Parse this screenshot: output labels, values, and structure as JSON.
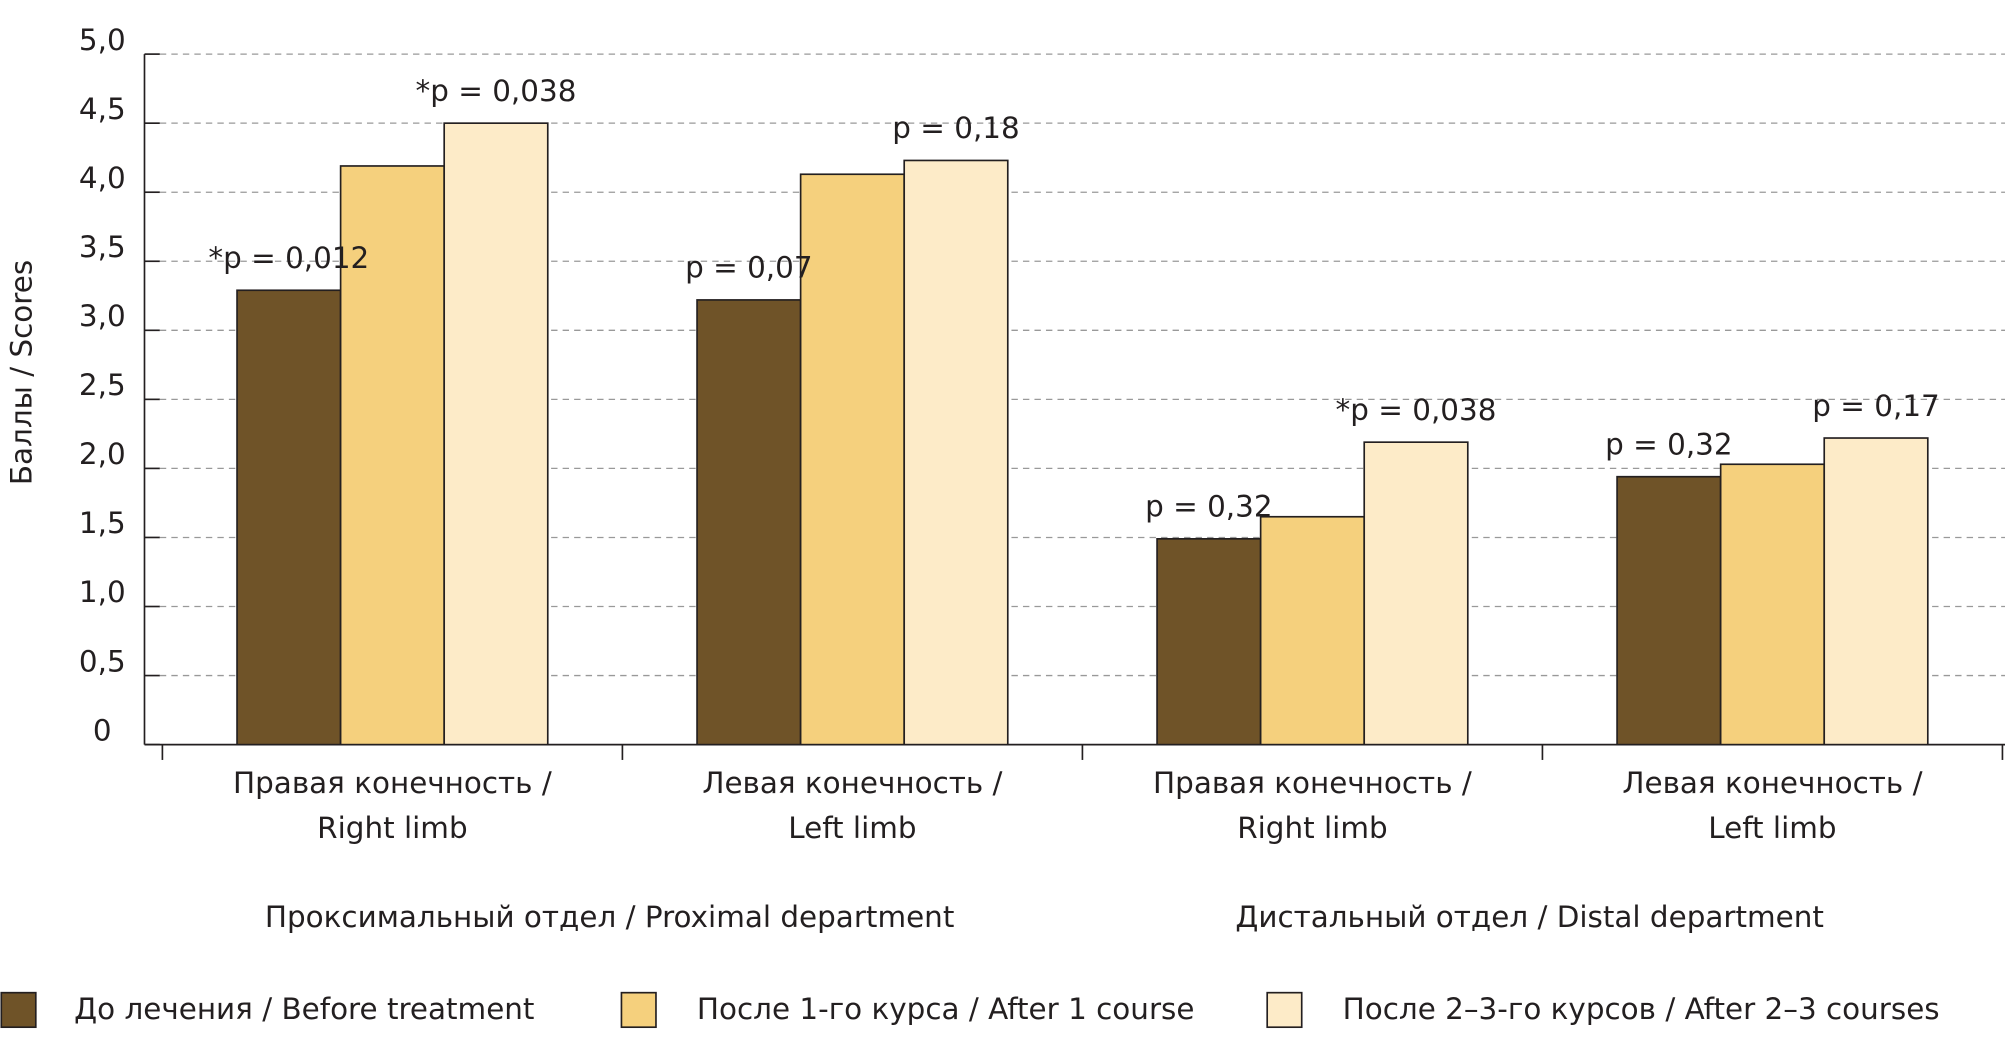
{
  "chart_data": {
    "type": "bar",
    "y_label": "Баллы / Scores",
    "categories": [
      "Правая конечность / Right limb",
      "Левая конечность / Left limb",
      "Правая конечность / Right limb",
      "Левая конечность / Left limb"
    ],
    "group_labels": [
      "Проксимальный отдел / Proximal department",
      "Дистальный отдел / Distal department"
    ],
    "series": [
      {
        "name": "До лечения / Before treatment",
        "color": "#6f5328",
        "values": [
          3.29,
          3.22,
          1.49,
          1.94
        ]
      },
      {
        "name": "После 1-го курса / After 1 course",
        "color": "#f5d07d",
        "values": [
          4.19,
          4.13,
          1.65,
          2.03
        ]
      },
      {
        "name": "После 2–3-го курсов / After 2–3 courses",
        "color": "#fdebc8",
        "values": [
          4.5,
          4.23,
          2.19,
          2.22
        ]
      }
    ],
    "annotations": [
      {
        "text": "*p = 0,012",
        "category": 0,
        "series": 0
      },
      {
        "text": "*p = 0,038",
        "category": 0,
        "series": 2
      },
      {
        "text": "p = 0,07",
        "category": 1,
        "series": 0
      },
      {
        "text": "p = 0,18",
        "category": 1,
        "series": 2
      },
      {
        "text": "p = 0,32",
        "category": 2,
        "series": 0
      },
      {
        "text": "*p = 0,038",
        "category": 2,
        "series": 2
      },
      {
        "text": "p = 0,32",
        "category": 3,
        "series": 0
      },
      {
        "text": "p = 0,17",
        "category": 3,
        "series": 2
      }
    ],
    "ylim": [
      0,
      5
    ],
    "yticks": [
      0,
      {
        "value": 0.5,
        "label": "0,5"
      },
      {
        "value": 1,
        "label": "1,0"
      },
      {
        "value": 1.5,
        "label": "1,5"
      },
      {
        "value": 2,
        "label": "2,0"
      },
      {
        "value": 2.5,
        "label": "2,5"
      },
      {
        "value": 3,
        "label": "3,0"
      },
      {
        "value": 3.5,
        "label": "3,5"
      },
      {
        "value": 4,
        "label": "4,0"
      },
      {
        "value": 4.5,
        "label": "4,5"
      },
      {
        "value": 5,
        "label": "5,0"
      }
    ],
    "grid": true
  }
}
